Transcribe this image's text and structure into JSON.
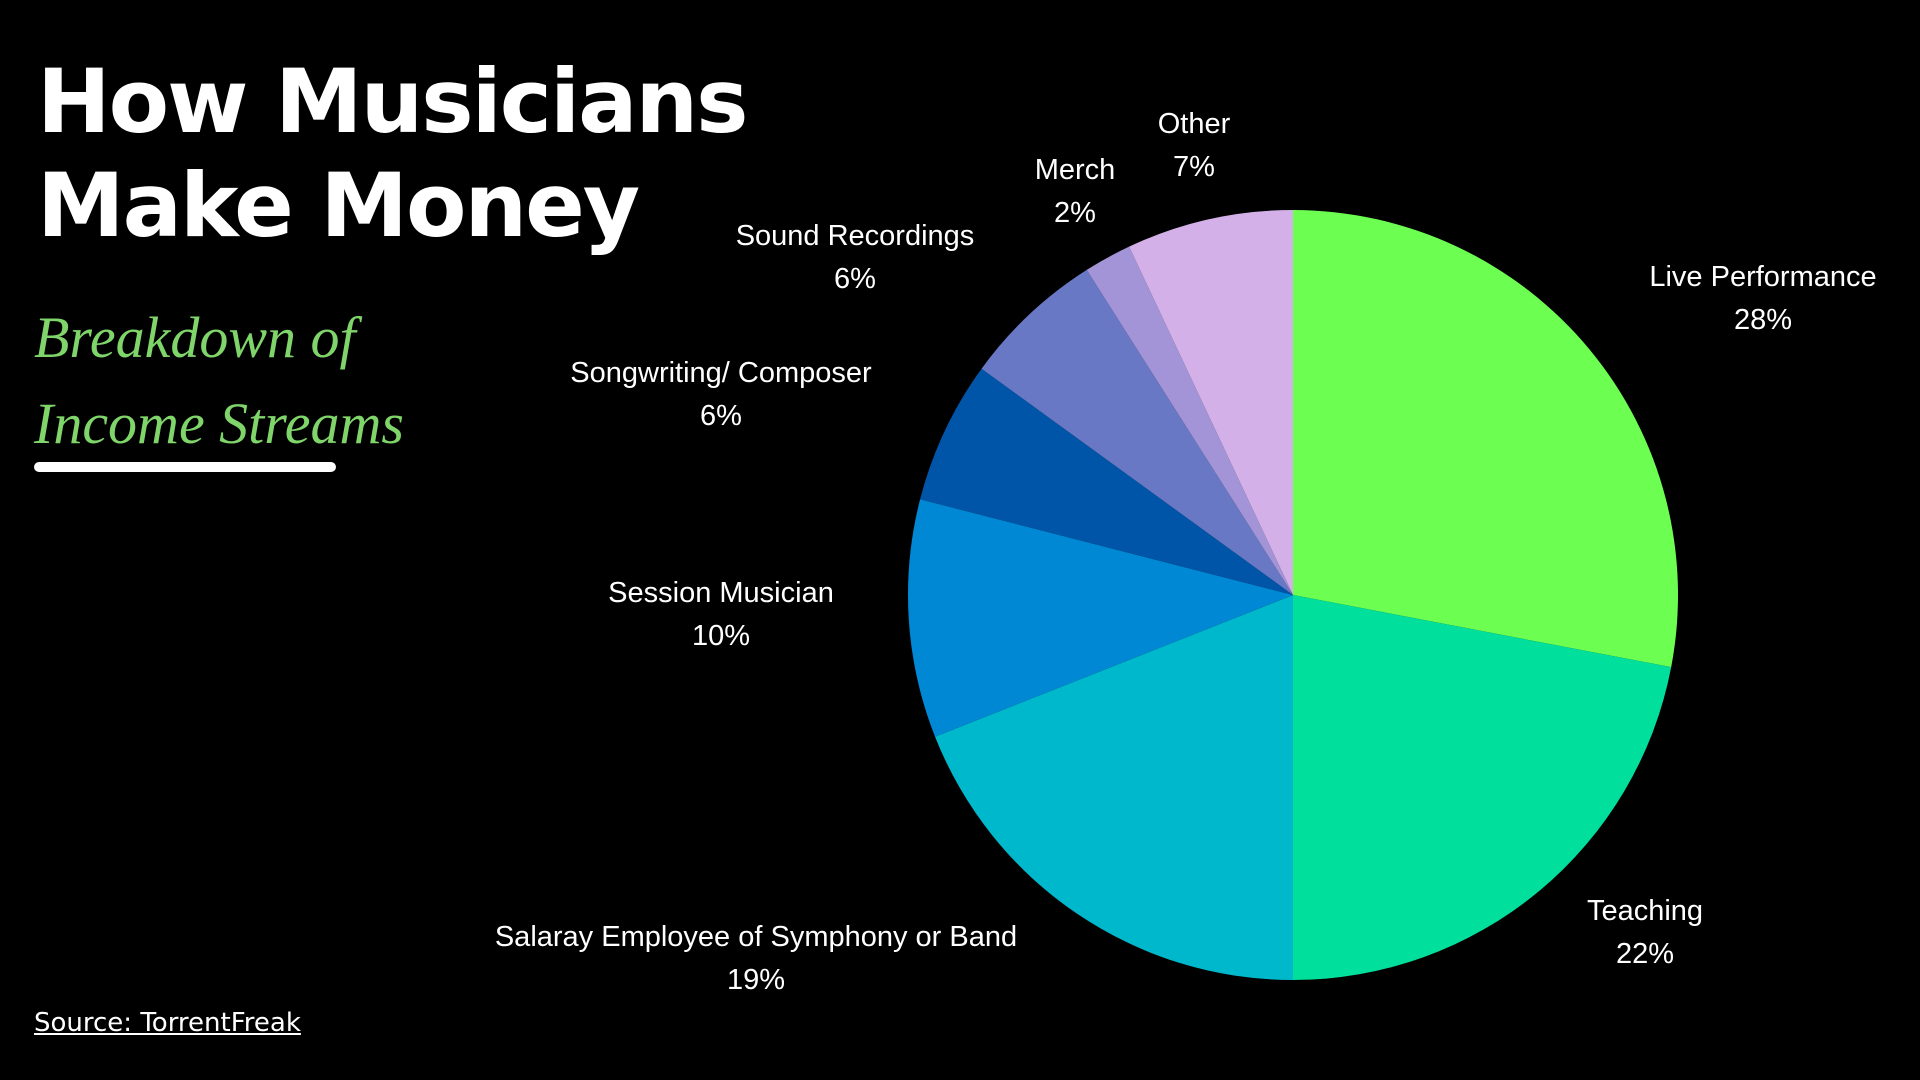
{
  "chart_data": {
    "type": "pie",
    "title": "How Musicians Make Money",
    "subtitle": "Breakdown of Income Streams",
    "source": "Source: TorrentFreak",
    "categories": [
      "Live Performance",
      "Teaching",
      "Salaray Employee of Symphony or Band",
      "Session Musician",
      "Songwriting/ Composer",
      "Sound Recordings",
      "Merch",
      "Other"
    ],
    "values": [
      28,
      22,
      19,
      10,
      6,
      6,
      2,
      7
    ],
    "value_labels": [
      "28%",
      "22%",
      "19%",
      "10%",
      "6%",
      "6%",
      "2%",
      "7%"
    ],
    "colors": [
      "#6cff52",
      "#00e09c",
      "#00b8cc",
      "#0088d4",
      "#0055a8",
      "#6878c4",
      "#a394d8",
      "#d4b0e8"
    ]
  }
}
